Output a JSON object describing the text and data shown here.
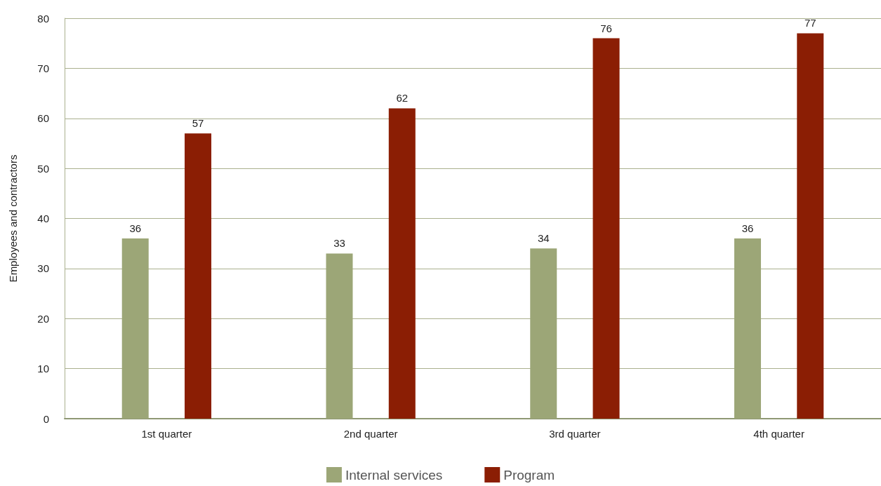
{
  "chart_data": {
    "type": "bar",
    "ylabel": "Employees and contractors",
    "categories": [
      "1st quarter",
      "2nd quarter",
      "3rd quarter",
      "4th quarter"
    ],
    "series": [
      {
        "name": "Internal services",
        "color": "#9ca677",
        "values": [
          36,
          33,
          34,
          36
        ]
      },
      {
        "name": "Program",
        "color": "#8b1e04",
        "values": [
          57,
          62,
          76,
          77
        ]
      }
    ],
    "ylim": [
      0,
      80
    ],
    "yticks": [
      0,
      10,
      20,
      30,
      40,
      50,
      60,
      70,
      80
    ],
    "grid": "y",
    "legend": "bottom",
    "data_labels": true
  }
}
